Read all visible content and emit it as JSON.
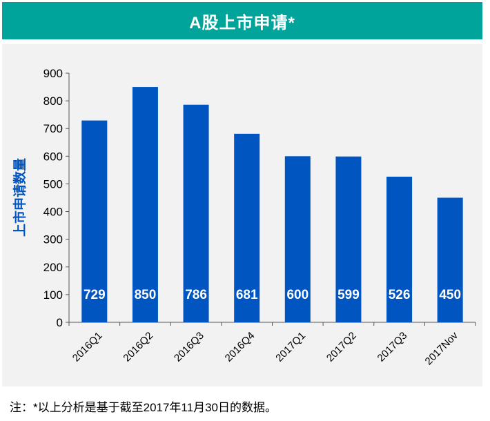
{
  "title": "A股上市申请*",
  "footnote": "注：*以上分析是基于截至2017年11月30日的数据。",
  "colors": {
    "title_bg": "#00a49a",
    "bar": "#0055c0",
    "ylabel": "#0055c0",
    "panel_bg": "#f2f2f2"
  },
  "chart_data": {
    "type": "bar",
    "title": "A股上市申请*",
    "xlabel": "",
    "ylabel": "上市申请数量",
    "categories": [
      "2016Q1",
      "2016Q2",
      "2016Q3",
      "2016Q4",
      "2017Q1",
      "2017Q2",
      "2017Q3",
      "2017Nov"
    ],
    "values": [
      729,
      850,
      786,
      681,
      600,
      599,
      526,
      450
    ],
    "ylim": [
      0,
      900
    ],
    "yticks": [
      0,
      100,
      200,
      300,
      400,
      500,
      600,
      700,
      800,
      900
    ],
    "grid": false,
    "legend": "none"
  }
}
